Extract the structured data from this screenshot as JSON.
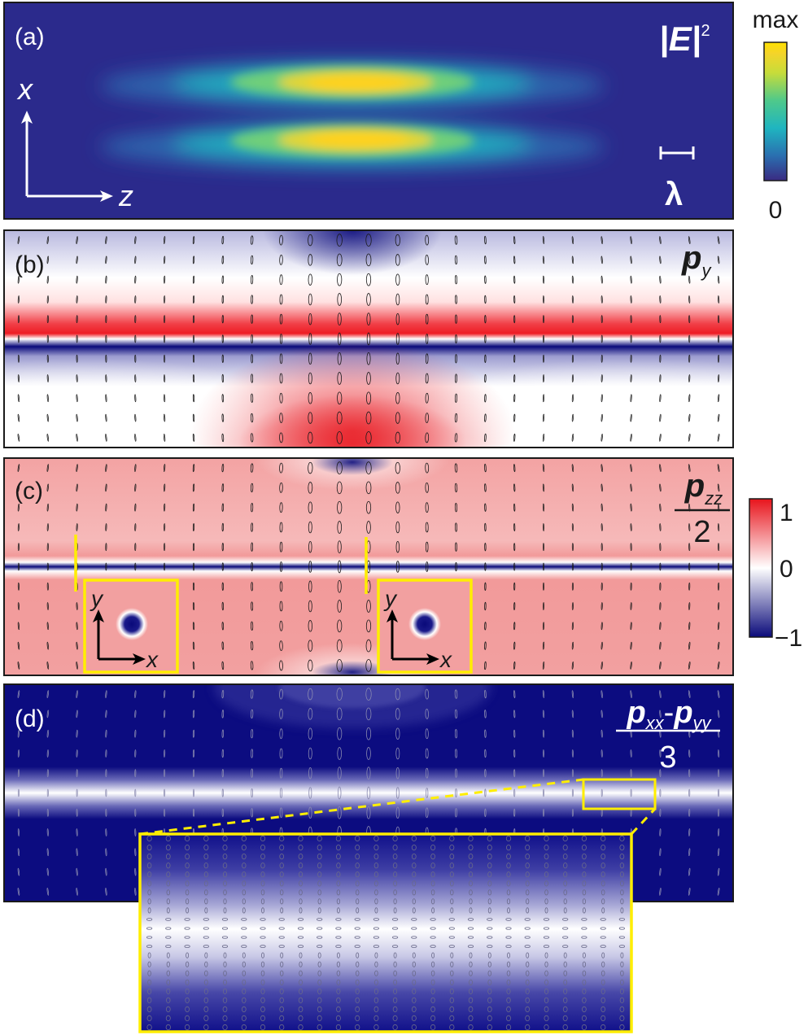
{
  "colors": {
    "panel_a_bg": "#2b2a8c",
    "blue": "#0a0a7a",
    "red": "#e8141c",
    "white": "#ffffff",
    "inset_outline": "#ffee00",
    "viridis": [
      "#3a2a82",
      "#2a6fb0",
      "#1fb5c0",
      "#4fc98a",
      "#c7dc3a",
      "#f4d42a",
      "#ffe000"
    ]
  },
  "panels": {
    "a": {
      "tag": "(a)",
      "quantity_base": "|E|",
      "quantity_sup": "2",
      "axis_x": "x",
      "axis_z": "z",
      "scale_label": "λ"
    },
    "b": {
      "tag": "(b)",
      "quantity_base": "p",
      "quantity_sub": "y"
    },
    "c": {
      "tag": "(c)",
      "quantity_base": "p",
      "quantity_sub": "zz",
      "quantity_den": "2",
      "inset1": {
        "axis_y": "y",
        "axis_x": "x"
      },
      "inset2": {
        "axis_y": "y",
        "axis_x": "x"
      }
    },
    "d": {
      "tag": "(d)",
      "q1_base": "p",
      "q1_sub": "xx",
      "minus": "-",
      "q2_base": "p",
      "q2_sub": "yy",
      "quantity_den": "3"
    }
  },
  "colorbar_intensity": {
    "max_label": "max",
    "min_label": "0"
  },
  "colorbar_diverging": {
    "top_label": "1",
    "mid_label": "0",
    "bottom_label": "−1"
  }
}
